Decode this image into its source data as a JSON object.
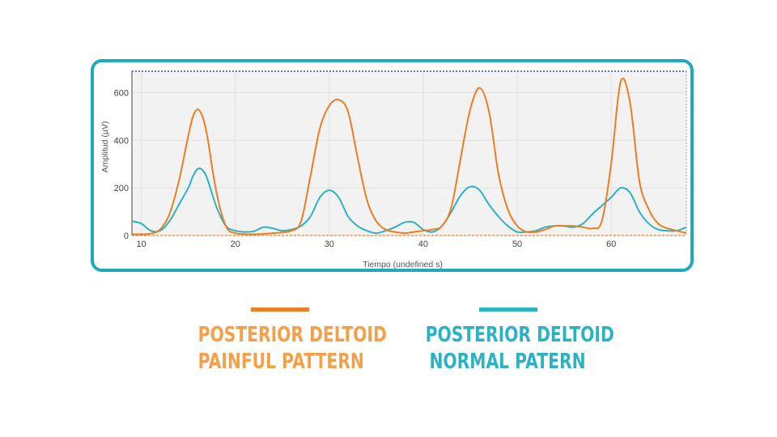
{
  "chart_data": {
    "type": "line",
    "xlabel": "Tiempo (undefined s)",
    "ylabel": "Amplitud (µV)",
    "xlim": [
      9,
      68
    ],
    "ylim": [
      0,
      690
    ],
    "x_ticks": [
      "10",
      "20",
      "30",
      "40",
      "50",
      "60"
    ],
    "y_ticks": [
      "0",
      "200",
      "400",
      "600"
    ],
    "grid": true,
    "series": [
      {
        "name": "POSTERIOR DELTOID PAINFUL PATTERN",
        "color": "#ee7d22",
        "x": [
          9,
          10,
          11,
          12,
          13,
          14,
          15,
          15.5,
          16,
          16.5,
          17,
          18,
          19,
          20,
          22,
          24,
          26,
          27,
          28,
          29,
          30,
          31,
          32,
          33,
          34,
          35,
          36,
          37,
          38,
          39,
          40,
          41,
          42,
          43,
          44,
          45,
          46,
          47,
          48,
          49,
          50,
          51,
          52,
          53,
          54,
          55,
          56,
          57,
          58,
          59,
          60,
          61,
          62,
          63,
          64,
          65,
          66,
          67,
          68
        ],
        "y": [
          5,
          5,
          8,
          25,
          90,
          230,
          420,
          500,
          530,
          500,
          420,
          180,
          40,
          10,
          5,
          10,
          20,
          60,
          250,
          450,
          545,
          570,
          520,
          330,
          150,
          60,
          25,
          15,
          10,
          15,
          20,
          25,
          40,
          120,
          330,
          530,
          620,
          520,
          260,
          110,
          40,
          15,
          15,
          25,
          40,
          40,
          40,
          35,
          30,
          60,
          300,
          645,
          560,
          230,
          110,
          50,
          30,
          20,
          10
        ],
        "smooth": true
      },
      {
        "name": "POSTERIOR DELTOID NORMAL PATERN",
        "color": "#2bb3c4",
        "x": [
          9,
          10,
          11,
          12,
          13,
          14,
          15,
          15.5,
          16,
          16.5,
          17,
          18,
          19,
          20,
          21,
          22,
          23,
          24,
          25,
          26,
          27,
          28,
          29,
          30,
          31,
          32,
          33,
          34,
          35,
          36,
          37,
          38,
          39,
          40,
          41,
          42,
          43,
          44,
          45,
          46,
          47,
          48,
          49,
          50,
          51,
          52,
          53,
          54,
          55,
          56,
          57,
          58,
          59,
          60,
          61,
          62,
          63,
          64,
          65,
          66,
          67,
          68
        ],
        "y": [
          60,
          50,
          20,
          20,
          60,
          130,
          200,
          250,
          280,
          275,
          240,
          120,
          40,
          20,
          15,
          18,
          35,
          30,
          20,
          25,
          40,
          80,
          160,
          190,
          160,
          80,
          40,
          20,
          10,
          20,
          35,
          55,
          55,
          25,
          15,
          40,
          100,
          170,
          205,
          190,
          130,
          80,
          40,
          15,
          15,
          20,
          35,
          40,
          40,
          35,
          50,
          90,
          125,
          160,
          200,
          180,
          100,
          50,
          25,
          20,
          20,
          35
        ]
      }
    ]
  }
}
